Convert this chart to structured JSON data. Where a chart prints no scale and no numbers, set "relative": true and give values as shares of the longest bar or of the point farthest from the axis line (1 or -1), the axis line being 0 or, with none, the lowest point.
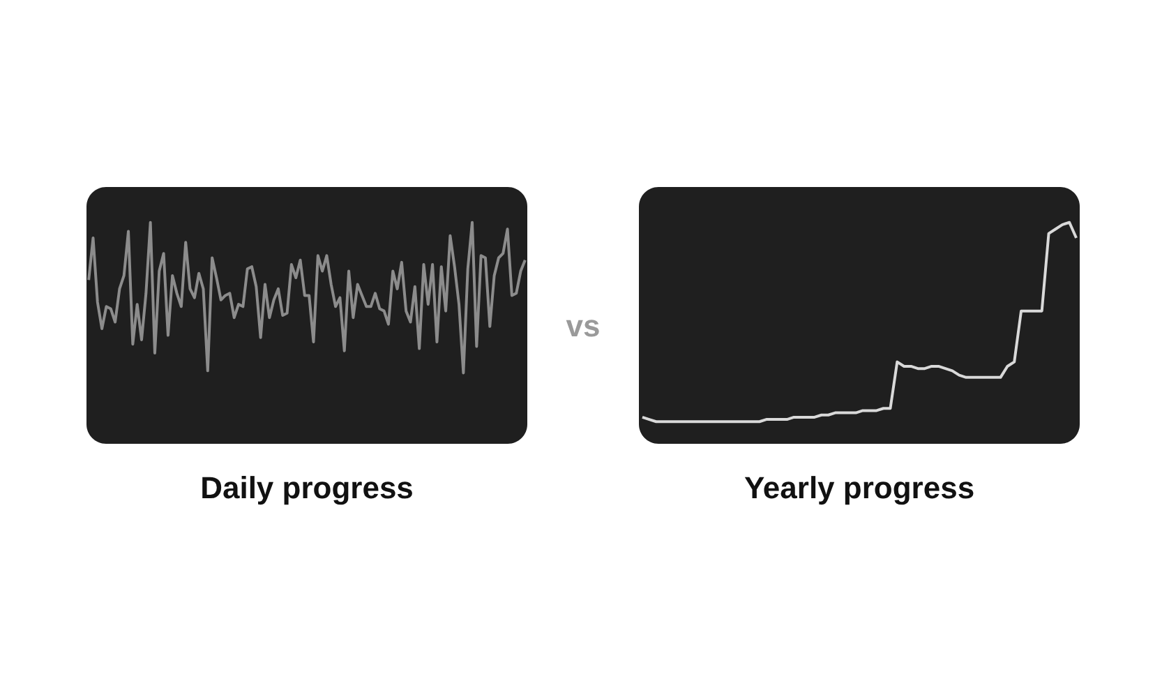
{
  "chart_data": [
    {
      "type": "line",
      "title": "Daily progress",
      "relative": true,
      "annotations": [
        "vs"
      ],
      "categories": [
        null,
        null,
        null,
        null,
        null,
        null,
        null,
        null,
        null,
        null,
        null,
        null,
        null,
        null,
        null,
        null,
        null,
        null,
        null,
        null,
        null,
        null,
        null,
        null,
        null,
        null,
        null,
        null,
        null,
        null,
        null,
        null,
        null,
        null,
        null,
        null,
        null,
        null,
        null,
        null,
        null,
        null,
        null,
        null,
        null,
        null,
        null,
        null,
        null,
        null,
        null,
        null,
        null,
        null,
        null,
        null,
        null,
        null,
        null,
        null,
        null,
        null,
        null,
        null,
        null,
        null,
        null,
        null,
        null,
        null,
        null,
        null,
        null,
        null,
        null,
        null,
        null,
        null,
        null,
        null,
        null,
        null,
        null,
        null,
        null,
        null,
        null,
        null,
        null,
        null,
        null,
        null,
        null,
        null,
        null,
        null,
        null,
        null,
        null,
        null
      ],
      "series": [
        {
          "color": "#8c8c8c",
          "values": [
            0.74,
            0.93,
            0.64,
            0.52,
            0.62,
            0.61,
            0.55,
            0.7,
            0.76,
            0.96,
            0.45,
            0.63,
            0.47,
            0.68,
            1,
            0.41,
            0.78,
            0.86,
            0.49,
            0.76,
            0.68,
            0.62,
            0.91,
            0.7,
            0.66,
            0.77,
            0.7,
            0.33,
            0.84,
            0.75,
            0.65,
            0.67,
            0.68,
            0.57,
            0.63,
            0.62,
            0.79,
            0.8,
            0.71,
            0.48,
            0.72,
            0.57,
            0.65,
            0.7,
            0.58,
            0.59,
            0.81,
            0.75,
            0.83,
            0.67,
            0.67,
            0.46,
            0.85,
            0.78,
            0.85,
            0.72,
            0.62,
            0.66,
            0.42,
            0.78,
            0.57,
            0.72,
            0.67,
            0.62,
            0.62,
            0.68,
            0.61,
            0.6,
            0.54,
            0.78,
            0.7,
            0.82,
            0.6,
            0.55,
            0.71,
            0.43,
            0.81,
            0.63,
            0.81,
            0.46,
            0.8,
            0.6,
            0.94,
            0.8,
            0.63,
            0.32,
            0.79,
            1,
            0.44,
            0.85,
            0.84,
            0.53,
            0.76,
            0.84,
            0.86,
            0.97,
            0.67,
            0.68,
            0.78,
            0.83
          ]
        }
      ]
    },
    {
      "type": "line",
      "title": "Yearly progress",
      "relative": true,
      "categories": [
        null,
        null,
        null,
        null,
        null,
        null,
        null,
        null,
        null,
        null,
        null,
        null,
        null,
        null,
        null,
        null,
        null,
        null,
        null,
        null,
        null,
        null,
        null,
        null,
        null,
        null,
        null,
        null,
        null,
        null,
        null,
        null,
        null,
        null,
        null,
        null,
        null,
        null,
        null,
        null,
        null,
        null,
        null,
        null,
        null,
        null,
        null,
        null,
        null,
        null,
        null,
        null,
        null,
        null,
        null,
        null,
        null,
        null,
        null,
        null,
        null,
        null,
        null,
        null
      ],
      "series": [
        {
          "color": "#d9d9d9",
          "values": [
            0.12,
            0.11,
            0.1,
            0.1,
            0.1,
            0.1,
            0.1,
            0.1,
            0.1,
            0.1,
            0.1,
            0.1,
            0.1,
            0.1,
            0.1,
            0.1,
            0.1,
            0.1,
            0.11,
            0.11,
            0.11,
            0.11,
            0.12,
            0.12,
            0.12,
            0.12,
            0.13,
            0.13,
            0.14,
            0.14,
            0.14,
            0.14,
            0.15,
            0.15,
            0.15,
            0.16,
            0.16,
            0.37,
            0.35,
            0.35,
            0.34,
            0.34,
            0.35,
            0.35,
            0.34,
            0.33,
            0.31,
            0.3,
            0.3,
            0.3,
            0.3,
            0.3,
            0.3,
            0.35,
            0.37,
            0.6,
            0.6,
            0.6,
            0.6,
            0.95,
            0.97,
            0.99,
            1,
            0.93
          ]
        }
      ]
    }
  ]
}
